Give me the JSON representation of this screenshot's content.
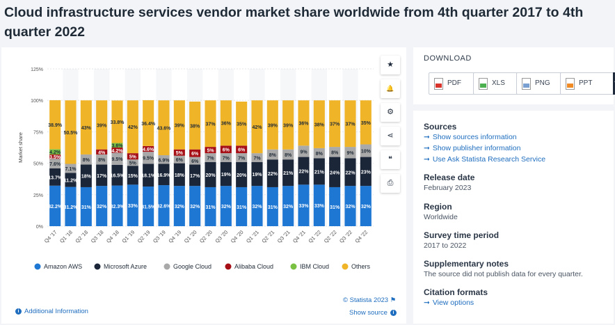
{
  "title": "Cloud infrastructure services vendor market share worldwide from 4th quarter 2017 to 4th quarter 2022",
  "toolbar": {
    "items": [
      {
        "name": "star-icon",
        "glyph": "★"
      },
      {
        "name": "bell-icon",
        "glyph": "🔔"
      },
      {
        "name": "gear-icon",
        "glyph": "⚙"
      },
      {
        "name": "share-icon",
        "glyph": "⋖"
      },
      {
        "name": "quote-icon",
        "glyph": "❝"
      },
      {
        "name": "print-icon",
        "glyph": "⎙"
      }
    ]
  },
  "download": {
    "title": "DOWNLOAD",
    "buttons": [
      {
        "label": "PDF",
        "color": "#d9342b",
        "plus": "+"
      },
      {
        "label": "XLS",
        "color": "#4caf50",
        "plus": "+"
      },
      {
        "label": "PNG",
        "color": "#7a9fd1",
        "plus": "+"
      },
      {
        "label": "PPT",
        "color": "#f08a24",
        "plus": "+"
      }
    ]
  },
  "info": {
    "sources_head": "Sources",
    "sources_links": [
      "Show sources information",
      "Show publisher information",
      "Use Ask Statista Research Service"
    ],
    "release_head": "Release date",
    "release_value": "February 2023",
    "region_head": "Region",
    "region_value": "Worldwide",
    "period_head": "Survey time period",
    "period_value": "2017 to 2022",
    "supp_head": "Supplementary notes",
    "supp_value": "The source did not publish data for every quarter.",
    "citation_head": "Citation formats",
    "citation_link": "View options"
  },
  "footer": {
    "additional_info": "Additional Information",
    "copyright": "© Statista 2023",
    "show_source": "Show source"
  },
  "chart_data": {
    "type": "bar",
    "stacked": true,
    "ylabel": "Market share",
    "ylim": [
      0,
      125
    ],
    "yticks": [
      "0%",
      "25%",
      "50%",
      "75%",
      "100%",
      "125%"
    ],
    "grid": true,
    "legend_position": "bottom",
    "categories": [
      "Q4 '17",
      "Q1 '18",
      "Q2 '18",
      "Q3 '18",
      "Q4 '18",
      "Q1 '19",
      "Q2 '19",
      "Q3 '19",
      "Q4 '19",
      "Q1 '20",
      "Q2 '20",
      "Q3 '20",
      "Q4 '20",
      "Q1 '21",
      "Q2 '21",
      "Q3 '21",
      "Q4 '21",
      "Q1 '22",
      "Q2 '22",
      "Q3 '22",
      "Q4 '22"
    ],
    "series": [
      {
        "name": "Amazon AWS",
        "color": "#1f77d4",
        "text_color": "#ffffff",
        "values": [
          32.2,
          31.2,
          31,
          32,
          32.3,
          33,
          31.5,
          32.6,
          32,
          32,
          31,
          32,
          31,
          32,
          31,
          32,
          33,
          33,
          31,
          32,
          32
        ],
        "labels": [
          "32.2%",
          "31.2%",
          "31%",
          "32%",
          "32.3%",
          "33%",
          "31.5%",
          "32.6%",
          "32%",
          "32%",
          "31%",
          "32%",
          "31%",
          "32%",
          "31%",
          "32%",
          "33%",
          "33%",
          "31%",
          "32%",
          "32%"
        ]
      },
      {
        "name": "Microsoft Azure",
        "color": "#1b2638",
        "text_color": "#ffffff",
        "values": [
          13.7,
          11.2,
          18,
          17,
          16.5,
          15,
          18.1,
          16.9,
          18,
          17,
          20,
          19,
          20,
          19,
          22,
          21,
          22,
          21,
          24,
          22,
          23
        ],
        "labels": [
          "13.7%",
          "11.2%",
          "18%",
          "17%",
          "16.5%",
          "15%",
          "18.1%",
          "16.9%",
          "18%",
          "17%",
          "20%",
          "19%",
          "20%",
          "19%",
          "22%",
          "21%",
          "22%",
          "21%",
          "24%",
          "22%",
          "23%"
        ]
      },
      {
        "name": "Google Cloud",
        "color": "#a9a9a9",
        "text_color": "#1f2a37",
        "values": [
          7.6,
          7.1,
          8,
          8,
          9.5,
          5,
          9.5,
          6.9,
          6,
          6,
          7,
          7,
          7,
          7,
          8,
          8,
          9,
          8,
          8,
          9,
          10
        ],
        "labels": [
          "7.6%",
          "7.1%",
          "8%",
          "8%",
          "9.5%",
          "5%",
          "9.5%",
          "6.9%",
          "6%",
          "6%",
          "7%",
          "7%",
          "7%",
          "7%",
          "8%",
          "8%",
          "9%",
          "8%",
          "8%",
          "9%",
          "10%"
        ]
      },
      {
        "name": "Alibaba Cloud",
        "color": "#a50f15",
        "text_color": "#ffffff",
        "values": [
          3.5,
          0,
          0,
          4,
          4.2,
          5,
          4.6,
          0,
          5,
          6,
          5,
          6,
          6,
          0,
          0,
          0,
          0,
          0,
          0,
          0,
          0
        ],
        "labels": [
          "3.5%",
          "",
          "",
          "4%",
          "4.2%",
          "5%",
          "4.6%",
          "",
          "5%",
          "6%",
          "5%",
          "6%",
          "6%",
          "",
          "",
          "",
          "",
          "",
          "",
          "",
          ""
        ]
      },
      {
        "name": "IBM Cloud",
        "color": "#7ac143",
        "text_color": "#1f2a37",
        "values": [
          4.2,
          0,
          0,
          0,
          3.6,
          0,
          0,
          0,
          0,
          0,
          0,
          0,
          0,
          0,
          0,
          0,
          0,
          0,
          0,
          0,
          0
        ],
        "labels": [
          "4.2%",
          "",
          "",
          "",
          "3.6%",
          "",
          "",
          "",
          "",
          "",
          "",
          "",
          "",
          "",
          "",
          "",
          "",
          "",
          "",
          "",
          ""
        ]
      },
      {
        "name": "Others",
        "color": "#f0b429",
        "text_color": "#1f2a37",
        "values": [
          38.9,
          50.5,
          43,
          39,
          33.8,
          42,
          36.4,
          43.6,
          39,
          38,
          37,
          36,
          35,
          42,
          39,
          39,
          36,
          38,
          37,
          37,
          35
        ],
        "labels": [
          "38.9%",
          "50.5%",
          "43%",
          "39%",
          "33.8%",
          "42%",
          "36.4%",
          "43.6%",
          "39%",
          "38%",
          "37%",
          "36%",
          "35%",
          "42%",
          "39%",
          "39%",
          "36%",
          "38%",
          "37%",
          "37%",
          "35%"
        ]
      }
    ]
  }
}
